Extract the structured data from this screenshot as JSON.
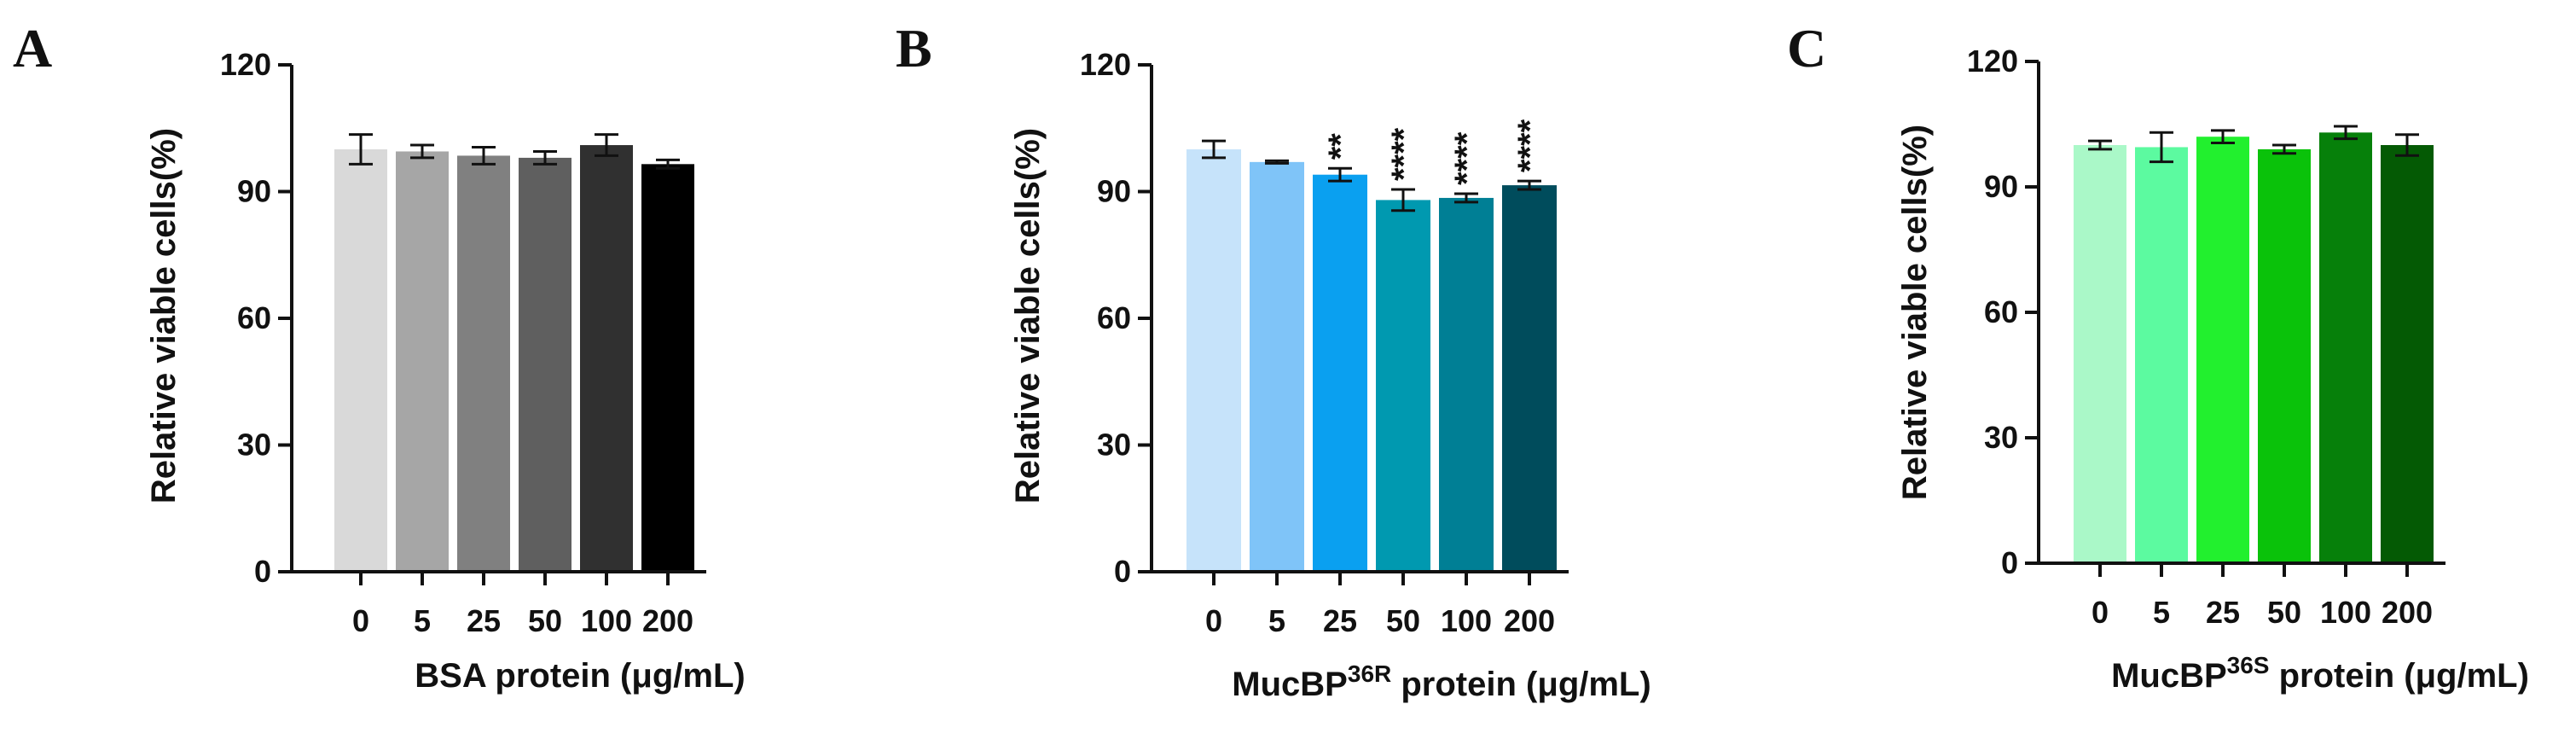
{
  "chart_data": [
    {
      "type": "bar",
      "panel": "A",
      "xlabel": "BSA protein (μg/mL)",
      "ylabel": "Relative viable cells(%)",
      "ylim": [
        0,
        120
      ],
      "yticks": [
        0,
        30,
        60,
        90,
        120
      ],
      "categories": [
        "0",
        "5",
        "25",
        "50",
        "100",
        "200"
      ],
      "values": [
        100,
        99.5,
        98.5,
        98.0,
        101.0,
        96.5
      ],
      "errors": [
        3.5,
        1.5,
        2.0,
        1.5,
        2.5,
        1.0
      ],
      "significance": [
        "",
        "",
        "",
        "",
        "",
        ""
      ],
      "colors": [
        "#d9d9d9",
        "#a6a6a6",
        "#808080",
        "#5f5f5f",
        "#303030",
        "#000000"
      ]
    },
    {
      "type": "bar",
      "panel": "B",
      "xlabel": "MucBP",
      "xlabel_sup": "36R",
      "xlabel_rest": " protein (μg/mL)",
      "ylabel": "Relative viable cells(%)",
      "ylim": [
        0,
        120
      ],
      "yticks": [
        0,
        30,
        60,
        90,
        120
      ],
      "categories": [
        "0",
        "5",
        "25",
        "50",
        "100",
        "200"
      ],
      "values": [
        100,
        97,
        94,
        88,
        88.5,
        91.5
      ],
      "errors": [
        2.0,
        0.3,
        1.5,
        2.5,
        1.0,
        1.0
      ],
      "significance": [
        "",
        "",
        "**",
        "****",
        "****",
        "****"
      ],
      "colors": [
        "#c6e3fa",
        "#7fc4f8",
        "#0aa0f0",
        "#0099b0",
        "#007f95",
        "#004c5c"
      ]
    },
    {
      "type": "bar",
      "panel": "C",
      "xlabel": "MucBP",
      "xlabel_sup": "36S",
      "xlabel_rest": " protein (μg/mL)",
      "ylabel": "Relative viable cells(%)",
      "ylim": [
        0,
        120
      ],
      "yticks": [
        0,
        30,
        60,
        90,
        120
      ],
      "categories": [
        "0",
        "5",
        "25",
        "50",
        "100",
        "200"
      ],
      "values": [
        100,
        99.5,
        102,
        99,
        103,
        100
      ],
      "errors": [
        1.0,
        3.5,
        1.5,
        1.0,
        1.5,
        2.5
      ],
      "significance": [
        "",
        "",
        "",
        "",
        "",
        ""
      ],
      "colors": [
        "#aaf8c8",
        "#5cfaa0",
        "#22f02e",
        "#0ac20a",
        "#06800a",
        "#045a04"
      ]
    }
  ]
}
